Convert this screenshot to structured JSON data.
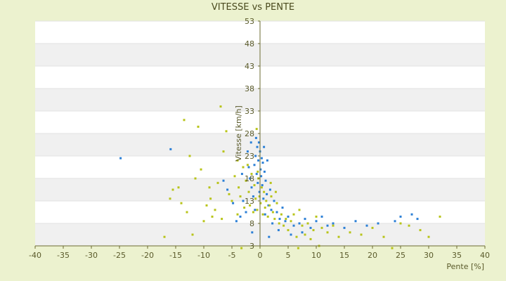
{
  "chart_data": {
    "type": "scatter",
    "title": "VITESSE vs PENTE",
    "xlabel": "Pente [%]",
    "ylabel": "Vitesse [km/h]",
    "xlim": [
      -40,
      40
    ],
    "ylim": [
      3,
      53
    ],
    "x_ticks": [
      -40,
      -35,
      -30,
      -25,
      -20,
      -15,
      -10,
      -5,
      0,
      5,
      10,
      15,
      20,
      25,
      30,
      35,
      40
    ],
    "y_ticks": [
      3,
      8,
      13,
      18,
      23,
      28,
      33,
      38,
      43,
      48,
      53
    ],
    "grid": "horizontal alternating bands",
    "legend": "none",
    "colors": {
      "background": "#ecf2cf",
      "band_white": "#ffffff",
      "band_gray": "#f0f0f0",
      "axis": "#6b6b32",
      "series_blue": "#2b7fd6",
      "series_yellow": "#b8c41a"
    },
    "series": [
      {
        "color_key": "series_blue",
        "points": [
          [
            -24.8,
            22.5
          ],
          [
            -15.9,
            24.5
          ],
          [
            -6.5,
            17.5
          ],
          [
            -5.8,
            15.5
          ],
          [
            -4.8,
            12.5
          ],
          [
            -4.2,
            8.5
          ],
          [
            -3.5,
            9.5
          ],
          [
            -3.0,
            13.0
          ],
          [
            -2.5,
            10.5
          ],
          [
            -2.0,
            20.5
          ],
          [
            -1.8,
            18.0
          ],
          [
            -1.5,
            16.0
          ],
          [
            -1.2,
            14.0
          ],
          [
            -1.0,
            21.0
          ],
          [
            -0.8,
            23.0
          ],
          [
            -0.6,
            19.0
          ],
          [
            -0.5,
            25.0
          ],
          [
            -0.4,
            17.0
          ],
          [
            -0.3,
            22.0
          ],
          [
            -0.2,
            26.0
          ],
          [
            -0.1,
            15.0
          ],
          [
            0.0,
            24.0
          ],
          [
            0.1,
            20.0
          ],
          [
            0.2,
            18.5
          ],
          [
            0.3,
            22.5
          ],
          [
            0.4,
            16.5
          ],
          [
            0.5,
            21.5
          ],
          [
            0.6,
            13.5
          ],
          [
            0.8,
            19.5
          ],
          [
            1.0,
            17.5
          ],
          [
            1.2,
            14.5
          ],
          [
            1.5,
            12.0
          ],
          [
            1.8,
            15.5
          ],
          [
            2.0,
            11.0
          ],
          [
            2.5,
            13.0
          ],
          [
            3.0,
            10.5
          ],
          [
            3.5,
            9.0
          ],
          [
            4.0,
            11.5
          ],
          [
            4.5,
            8.5
          ],
          [
            5.0,
            9.5
          ],
          [
            6.0,
            7.5
          ],
          [
            7.0,
            8.0
          ],
          [
            8.0,
            9.0
          ],
          [
            9.0,
            7.0
          ],
          [
            10.0,
            8.5
          ],
          [
            11.0,
            9.5
          ],
          [
            12.0,
            7.5
          ],
          [
            13.0,
            8.0
          ],
          [
            15.0,
            7.0
          ],
          [
            17.0,
            8.5
          ],
          [
            19.0,
            7.5
          ],
          [
            21.0,
            8.0
          ],
          [
            24.0,
            8.5
          ],
          [
            25.0,
            9.5
          ],
          [
            27.0,
            10.0
          ],
          [
            28.0,
            9.0
          ],
          [
            -2.2,
            24.0
          ],
          [
            -1.6,
            26.0
          ],
          [
            -0.7,
            27.0
          ],
          [
            0.7,
            25.0
          ],
          [
            1.3,
            22.0
          ],
          [
            -3.2,
            19.0
          ],
          [
            -0.9,
            11.0
          ],
          [
            0.9,
            10.0
          ],
          [
            2.2,
            8.0
          ],
          [
            -1.4,
            6.0
          ],
          [
            1.6,
            5.0
          ],
          [
            3.3,
            6.5
          ],
          [
            5.5,
            5.5
          ],
          [
            7.5,
            6.0
          ]
        ]
      },
      {
        "color_key": "series_yellow",
        "points": [
          [
            -17.0,
            5.0
          ],
          [
            -16.0,
            13.5
          ],
          [
            -15.5,
            15.5
          ],
          [
            -14.5,
            16.0
          ],
          [
            -14.0,
            12.5
          ],
          [
            -13.5,
            31.0
          ],
          [
            -13.0,
            10.5
          ],
          [
            -12.5,
            23.0
          ],
          [
            -12.0,
            5.5
          ],
          [
            -11.5,
            18.0
          ],
          [
            -11.0,
            29.5
          ],
          [
            -10.5,
            20.0
          ],
          [
            -10.0,
            8.5
          ],
          [
            -9.5,
            12.0
          ],
          [
            -9.0,
            16.0
          ],
          [
            -8.5,
            9.5
          ],
          [
            -8.0,
            11.0
          ],
          [
            -7.5,
            17.0
          ],
          [
            -7.0,
            34.0
          ],
          [
            -6.5,
            24.0
          ],
          [
            -6.0,
            28.5
          ],
          [
            -5.5,
            14.5
          ],
          [
            -5.0,
            13.0
          ],
          [
            -4.5,
            18.5
          ],
          [
            -4.0,
            10.0
          ],
          [
            -3.8,
            16.0
          ],
          [
            -3.5,
            14.0
          ],
          [
            -3.0,
            20.5
          ],
          [
            -2.8,
            11.5
          ],
          [
            -2.5,
            17.5
          ],
          [
            -2.0,
            15.0
          ],
          [
            -1.8,
            12.0
          ],
          [
            -1.5,
            19.0
          ],
          [
            -1.2,
            10.5
          ],
          [
            -1.0,
            16.5
          ],
          [
            -0.8,
            13.5
          ],
          [
            -0.6,
            29.0
          ],
          [
            -0.5,
            11.0
          ],
          [
            -0.3,
            18.0
          ],
          [
            -0.1,
            14.0
          ],
          [
            0.1,
            12.5
          ],
          [
            0.3,
            16.0
          ],
          [
            0.5,
            10.0
          ],
          [
            0.7,
            15.0
          ],
          [
            0.9,
            11.5
          ],
          [
            1.1,
            13.0
          ],
          [
            1.4,
            9.5
          ],
          [
            1.7,
            12.0
          ],
          [
            2.0,
            14.0
          ],
          [
            2.3,
            10.5
          ],
          [
            2.6,
            9.0
          ],
          [
            3.0,
            12.5
          ],
          [
            3.4,
            8.0
          ],
          [
            3.8,
            10.0
          ],
          [
            4.2,
            7.5
          ],
          [
            4.6,
            9.0
          ],
          [
            5.0,
            6.5
          ],
          [
            5.5,
            8.5
          ],
          [
            6.0,
            10.0
          ],
          [
            6.5,
            5.0
          ],
          [
            7.0,
            11.0
          ],
          [
            7.5,
            7.5
          ],
          [
            8.0,
            5.5
          ],
          [
            8.5,
            8.0
          ],
          [
            9.0,
            4.5
          ],
          [
            9.5,
            6.5
          ],
          [
            10.0,
            9.5
          ],
          [
            11.0,
            7.0
          ],
          [
            12.0,
            6.0
          ],
          [
            13.0,
            7.5
          ],
          [
            14.0,
            5.0
          ],
          [
            16.0,
            6.0
          ],
          [
            18.0,
            5.5
          ],
          [
            20.0,
            7.0
          ],
          [
            22.0,
            5.0
          ],
          [
            23.5,
            2.5
          ],
          [
            25.0,
            8.0
          ],
          [
            26.5,
            7.5
          ],
          [
            28.5,
            6.5
          ],
          [
            30.0,
            5.0
          ],
          [
            32.0,
            9.5
          ],
          [
            -4.0,
            22.0
          ],
          [
            -2.2,
            21.0
          ],
          [
            -0.4,
            19.5
          ],
          [
            1.9,
            17.0
          ],
          [
            2.8,
            15.0
          ],
          [
            -6.8,
            9.0
          ],
          [
            -8.8,
            13.5
          ],
          [
            -3.3,
            2.5
          ],
          [
            6.8,
            2.5
          ],
          [
            10.5,
            3.0
          ]
        ]
      }
    ]
  }
}
